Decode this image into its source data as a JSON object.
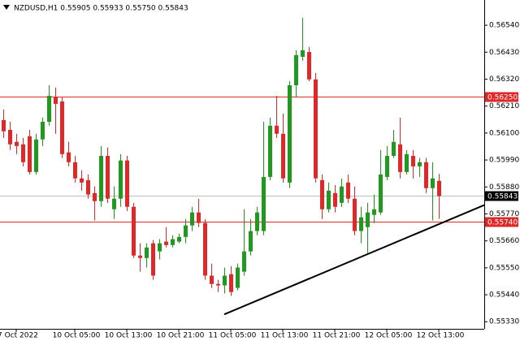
{
  "chart_data": {
    "type": "candlestick",
    "title": "NZDUSD,H1  0.55905 0.55933 0.55750 0.55843",
    "up_color": "#1f9a1f",
    "down_color": "#e02828",
    "categories": [
      null,
      null,
      "7 Oct 2022",
      null,
      null,
      null,
      null,
      null,
      null,
      null,
      null,
      "10 Oct 05:00",
      null,
      null,
      null,
      null,
      null,
      null,
      null,
      "10 Oct 13:00",
      null,
      null,
      null,
      null,
      null,
      null,
      null,
      "10 Oct 21:00",
      null,
      null,
      null,
      null,
      null,
      null,
      null,
      "11 Oct 05:00",
      null,
      null,
      null,
      null,
      null,
      null,
      null,
      "11 Oct 13:00",
      null,
      null,
      null,
      null,
      null,
      null,
      null,
      "11 Oct 21:00",
      null,
      null,
      null,
      null,
      null,
      null,
      null,
      "12 Oct 05:00",
      null,
      null,
      null,
      null,
      null,
      null,
      null,
      "12 Oct 13:00"
    ],
    "open": [
      0.56153,
      0.56113,
      0.56064,
      0.56054,
      0.56087,
      0.55941,
      0.56074,
      0.56146,
      0.56246,
      0.56229,
      0.56021,
      0.55981,
      0.55915,
      0.55908,
      0.55855,
      0.55822,
      0.56007,
      0.55789,
      0.55832,
      0.55988,
      0.55799,
      0.556,
      0.5559,
      0.5565,
      0.55617,
      0.55657,
      0.55643,
      0.55657,
      0.55676,
      0.55723,
      0.55776,
      0.55733,
      0.55518,
      0.55484,
      0.55478,
      0.55524,
      0.55468,
      0.55534,
      0.55617,
      0.557,
      0.557,
      0.55921,
      0.5613,
      0.56097,
      0.55898,
      0.56295,
      0.56411,
      0.56431,
      0.56319,
      0.55908,
      0.55789,
      0.55855,
      0.55815,
      0.55898,
      0.55832,
      0.557,
      0.55716,
      0.55766,
      0.55776,
      0.55921,
      0.56007,
      0.56054,
      0.55941,
      0.56007,
      0.55964,
      0.55981,
      0.55875,
      0.55905
    ],
    "high": [
      0.56196,
      0.56146,
      0.56097,
      0.5608,
      0.56113,
      0.56097,
      0.56163,
      0.56295,
      0.56286,
      0.56246,
      0.56064,
      0.56007,
      0.55948,
      0.55931,
      0.55882,
      0.56047,
      0.56041,
      0.55882,
      0.56014,
      0.56007,
      0.55815,
      0.5565,
      0.5565,
      0.55663,
      0.55667,
      0.55716,
      0.55683,
      0.5569,
      0.55749,
      0.55799,
      0.55832,
      0.55749,
      0.55567,
      0.55501,
      0.55551,
      0.55557,
      0.55567,
      0.55789,
      0.55749,
      0.55799,
      0.56146,
      0.56163,
      0.56252,
      0.5618,
      0.56312,
      0.56438,
      0.5657,
      0.56451,
      0.56345,
      0.55931,
      0.55898,
      0.55888,
      0.55915,
      0.55931,
      0.55882,
      0.55799,
      0.55815,
      0.55849,
      0.56031,
      0.56047,
      0.56113,
      0.56163,
      0.56031,
      0.56031,
      0.55998,
      0.55998,
      0.55981,
      0.55933
    ],
    "low": [
      0.5608,
      0.56031,
      0.56014,
      0.55964,
      0.55931,
      0.55931,
      0.56047,
      0.5613,
      0.56097,
      0.55998,
      0.55964,
      0.55898,
      0.55865,
      0.55832,
      0.55743,
      0.55799,
      0.55815,
      0.55749,
      0.55799,
      0.55782,
      0.5559,
      0.55534,
      0.55551,
      0.55501,
      0.55584,
      0.55633,
      0.55633,
      0.5565,
      0.5565,
      0.557,
      0.55716,
      0.55501,
      0.55468,
      0.55451,
      0.55445,
      0.55435,
      0.55458,
      0.55518,
      0.556,
      0.55683,
      0.55683,
      0.55908,
      0.5608,
      0.55898,
      0.55875,
      0.56246,
      0.56395,
      0.56312,
      0.55898,
      0.55749,
      0.55776,
      0.55776,
      0.55799,
      0.55815,
      0.55683,
      0.5565,
      0.5561,
      0.55733,
      0.55766,
      0.55908,
      0.55998,
      0.55915,
      0.55931,
      0.55915,
      0.55921,
      0.55855,
      0.55743,
      0.5575
    ],
    "close": [
      0.56107,
      0.56054,
      0.56047,
      0.55981,
      0.55941,
      0.56074,
      0.56146,
      0.56252,
      0.56219,
      0.56014,
      0.55981,
      0.55915,
      0.55898,
      0.55849,
      0.55822,
      0.56007,
      0.55832,
      0.55832,
      0.55988,
      0.55799,
      0.556,
      0.5559,
      0.55633,
      0.55518,
      0.5565,
      0.55643,
      0.55667,
      0.55676,
      0.55723,
      0.55776,
      0.55733,
      0.55518,
      0.55484,
      0.55478,
      0.55518,
      0.55451,
      0.55551,
      0.55617,
      0.557,
      0.55776,
      0.55921,
      0.5613,
      0.56097,
      0.55915,
      0.56295,
      0.56418,
      0.56438,
      0.56319,
      0.55915,
      0.55789,
      0.55865,
      0.55799,
      0.55882,
      0.55832,
      0.557,
      0.55756,
      0.55776,
      0.55789,
      0.55931,
      0.56007,
      0.56064,
      0.55941,
      0.56014,
      0.55964,
      0.55981,
      0.55875,
      0.55915,
      0.55843
    ],
    "ylim": [
      0.55301,
      0.56643
    ],
    "yticks": [
      {
        "value": 0.5654,
        "label": "0.56540"
      },
      {
        "value": 0.5643,
        "label": "0.56430"
      },
      {
        "value": 0.5632,
        "label": "0.56320"
      },
      {
        "value": 0.5621,
        "label": "0.56210"
      },
      {
        "value": 0.561,
        "label": "0.56100"
      },
      {
        "value": 0.5599,
        "label": "0.55990"
      },
      {
        "value": 0.5588,
        "label": "0.55880"
      },
      {
        "value": 0.5577,
        "label": "0.55770"
      },
      {
        "value": 0.5566,
        "label": "0.55660"
      },
      {
        "value": 0.5555,
        "label": "0.55550"
      },
      {
        "value": 0.5544,
        "label": "0.55440"
      },
      {
        "value": 0.5533,
        "label": "0.55330"
      }
    ],
    "hlines": [
      {
        "value": 0.5625,
        "label": "0.56250",
        "color": "#e02828"
      },
      {
        "value": 0.55843,
        "label": "0.55843",
        "color": "#c0c0c0"
      },
      {
        "value": 0.5574,
        "label": "0.55740",
        "color": "#e02828"
      }
    ],
    "trendline": {
      "x": [
        34,
        74
      ],
      "y": [
        0.5536,
        0.55806
      ],
      "color": "#000000"
    }
  }
}
